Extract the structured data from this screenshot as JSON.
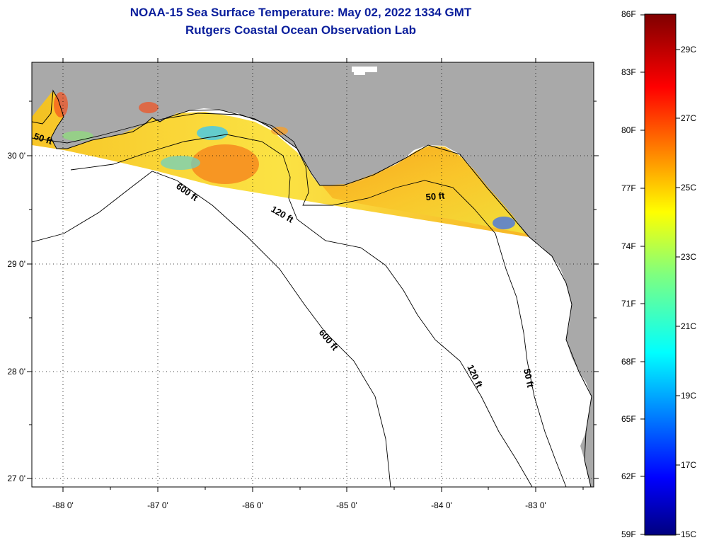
{
  "title": "NOAA-15 Sea Surface Temperature:  May 02, 2022 1334 GMT",
  "subtitle": "Rutgers Coastal Ocean Observation Lab",
  "longitude_labels": [
    "-88 0'",
    "-87 0'",
    "-86 0'",
    "-85 0'",
    "-84 0'",
    "-83 0'"
  ],
  "latitude_labels": [
    "30 0'",
    "29 0'",
    "28 0'",
    "27 0'"
  ],
  "contour_labels": {
    "c50_west": "50 ft",
    "c50_east": "50 ft",
    "c50_south": "50 ft",
    "c120_north": "120 ft",
    "c120_south": "120 ft",
    "c600_north": "600 ft",
    "c600_south": "600 ft"
  },
  "colorbar": {
    "fahrenheit_labels": [
      "86F",
      "83F",
      "80F",
      "77F",
      "74F",
      "71F",
      "68F",
      "65F",
      "62F",
      "59F"
    ],
    "celsius_labels": [
      "29C",
      "27C",
      "25C",
      "23C",
      "21C",
      "19C",
      "17C",
      "15C"
    ],
    "colormap": "jet",
    "range_f": [
      59,
      86
    ]
  },
  "colors": {
    "land": "#a9a9a9",
    "water_no_data": "#ffffff",
    "title": "#0a1e9c"
  }
}
